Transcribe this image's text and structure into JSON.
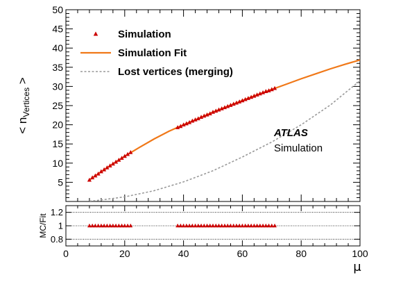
{
  "chart_data": [
    {
      "type": "scatter",
      "title": "",
      "ylabel": {
        "main": "< n",
        "sub": "Vertices",
        "end": " >"
      },
      "xlim": [
        0,
        100
      ],
      "ylim": [
        0,
        50
      ],
      "yticks": [
        5,
        10,
        15,
        20,
        25,
        30,
        35,
        40,
        45,
        50
      ],
      "x_scale": "linear",
      "grid": false,
      "legend": {
        "placement": "top-left",
        "entries": [
          {
            "label": "Simulation",
            "marker": "triangle",
            "color": "#cc0000"
          },
          {
            "label": "Simulation Fit",
            "line": "solid",
            "color": "#f07818"
          },
          {
            "label": "Lost vertices (merging)",
            "line": "dashed",
            "color": "#999999"
          }
        ]
      },
      "annotation": {
        "experiment": "ATLAS",
        "status": "Simulation"
      },
      "series": [
        {
          "name": "Simulation",
          "style": "markers",
          "color": "#cc0000",
          "x": [
            8,
            9,
            10,
            11,
            12,
            13,
            14,
            15,
            16,
            17,
            18,
            19,
            20,
            21,
            22,
            38,
            39,
            40,
            41,
            42,
            43,
            44,
            45,
            46,
            47,
            48,
            49,
            50,
            51,
            52,
            53,
            54,
            55,
            56,
            57,
            58,
            59,
            60,
            61,
            62,
            63,
            64,
            65,
            66,
            67,
            68,
            69,
            70,
            71
          ],
          "y": [
            5.6,
            6.2,
            6.7,
            7.2,
            7.8,
            8.3,
            8.8,
            9.3,
            9.8,
            10.3,
            10.8,
            11.3,
            11.8,
            12.3,
            12.8,
            19.3,
            19.6,
            20.0,
            20.3,
            20.6,
            21.0,
            21.3,
            21.6,
            22.0,
            22.3,
            22.6,
            22.9,
            23.3,
            23.6,
            23.9,
            24.2,
            24.5,
            24.8,
            25.1,
            25.4,
            25.7,
            26.0,
            26.3,
            26.6,
            26.9,
            27.2,
            27.5,
            27.8,
            28.1,
            28.4,
            28.7,
            28.9,
            29.2,
            29.5
          ]
        },
        {
          "name": "Simulation Fit",
          "style": "line",
          "color": "#f07818",
          "x": [
            8,
            10,
            15,
            20,
            25,
            30,
            35,
            40,
            45,
            50,
            55,
            60,
            65,
            70,
            75,
            80,
            85,
            90,
            95,
            100
          ],
          "y": [
            5.6,
            6.7,
            9.3,
            11.8,
            14.1,
            16.3,
            18.3,
            20.0,
            21.6,
            23.3,
            24.8,
            26.3,
            27.8,
            29.2,
            30.6,
            32.0,
            33.3,
            34.6,
            35.8,
            36.9
          ]
        },
        {
          "name": "Lost vertices (merging)",
          "style": "dashed",
          "color": "#999999",
          "x": [
            8,
            10,
            20,
            30,
            40,
            50,
            60,
            70,
            80,
            90,
            100
          ],
          "y": [
            0.1,
            0.2,
            1.2,
            2.8,
            5.1,
            8.0,
            11.6,
            15.5,
            20.0,
            25.2,
            31.5
          ]
        }
      ]
    },
    {
      "type": "scatter",
      "title": "",
      "ylabel": "MC/Fit",
      "xlabel": "μ",
      "xlim": [
        0,
        100
      ],
      "ylim": [
        0.7,
        1.3
      ],
      "xticks": [
        0,
        20,
        40,
        60,
        80,
        100
      ],
      "yticks": [
        0.8,
        1,
        1.2
      ],
      "ytick_labels": [
        "0.8",
        "1",
        "1.2"
      ],
      "reference_lines": [
        0.8,
        1.0,
        1.2
      ],
      "grid": false,
      "series": [
        {
          "name": "MC/Fit",
          "style": "markers",
          "color": "#cc0000",
          "x": [
            8,
            9,
            10,
            11,
            12,
            13,
            14,
            15,
            16,
            17,
            18,
            19,
            20,
            21,
            22,
            38,
            39,
            40,
            41,
            42,
            43,
            44,
            45,
            46,
            47,
            48,
            49,
            50,
            51,
            52,
            53,
            54,
            55,
            56,
            57,
            58,
            59,
            60,
            61,
            62,
            63,
            64,
            65,
            66,
            67,
            68,
            69,
            70,
            71
          ],
          "y": [
            1,
            1,
            1,
            1,
            1,
            1,
            1,
            1,
            1,
            1,
            1,
            1,
            1,
            1,
            1,
            1,
            1,
            1,
            1,
            1,
            1,
            1,
            1,
            1,
            1,
            1,
            1,
            1,
            1,
            1,
            1,
            1,
            1,
            1,
            1,
            1,
            1,
            1,
            1,
            1,
            1,
            1,
            1,
            1,
            1,
            1,
            1,
            1,
            1
          ]
        }
      ]
    }
  ]
}
